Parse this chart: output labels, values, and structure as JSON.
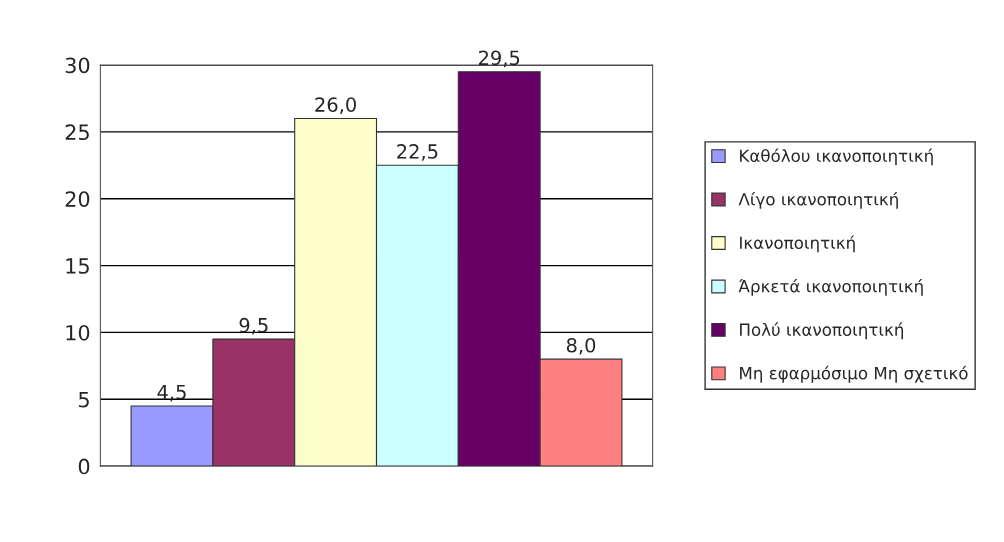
{
  "chart_data": {
    "type": "bar",
    "categories": [
      null
    ],
    "series": [
      {
        "name": "Καθόλου ικανοποιητική",
        "color": "#9999ff",
        "values": [
          4.5
        ],
        "value_labels": [
          "4,5"
        ]
      },
      {
        "name": "Λίγο ικανοποιητική",
        "color": "#993366",
        "values": [
          9.5
        ],
        "value_labels": [
          "9,5"
        ]
      },
      {
        "name": "Ικανοποιητική",
        "color": "#ffffcc",
        "values": [
          26.0
        ],
        "value_labels": [
          "26,0"
        ]
      },
      {
        "name": "Άρκετά ικανοποιητική",
        "color": "#ccffff",
        "values": [
          22.5
        ],
        "value_labels": [
          "22,5"
        ]
      },
      {
        "name": "Πολύ ικανοποιητική",
        "color": "#660066",
        "values": [
          29.5
        ],
        "value_labels": [
          "29,5"
        ]
      },
      {
        "name": "Μη εφαρμόσιμο Μη σχετικό",
        "color": "#ff8080",
        "values": [
          8.0
        ],
        "value_labels": [
          "8,0"
        ]
      }
    ],
    "ylim": [
      0,
      30
    ],
    "yticks": [
      0,
      5,
      10,
      15,
      20,
      25,
      30
    ],
    "grid": "y",
    "legend": "right"
  }
}
